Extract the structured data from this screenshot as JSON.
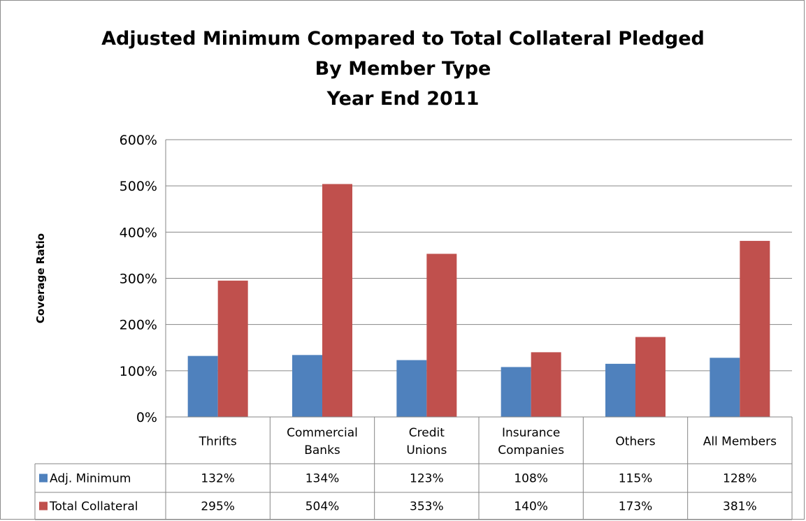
{
  "chart_data": {
    "type": "bar",
    "title_lines": [
      "Adjusted Minimum Compared to Total Collateral Pledged",
      "By Member Type",
      "Year End 2011"
    ],
    "ylabel": "Coverage Ratio",
    "xlabel": "",
    "ylim": [
      0,
      600
    ],
    "yticks": [
      0,
      100,
      200,
      300,
      400,
      500,
      600
    ],
    "ytick_labels": [
      "0%",
      "100%",
      "200%",
      "300%",
      "400%",
      "500%",
      "600%"
    ],
    "grid": true,
    "legend": "data-table",
    "categories": [
      [
        "Thrifts"
      ],
      [
        "Commercial",
        "Banks"
      ],
      [
        "Credit",
        "Unions"
      ],
      [
        "Insurance",
        "Companies"
      ],
      [
        "Others"
      ],
      [
        "All Members"
      ]
    ],
    "series": [
      {
        "name": "Adj. Minimum",
        "color": "#4f81bd",
        "values": [
          132,
          134,
          123,
          108,
          115,
          128
        ],
        "labels": [
          "132%",
          "134%",
          "123%",
          "108%",
          "115%",
          "128%"
        ]
      },
      {
        "name": "Total Collateral",
        "color": "#c0504d",
        "values": [
          295,
          504,
          353,
          140,
          173,
          381
        ],
        "labels": [
          "295%",
          "504%",
          "353%",
          "140%",
          "173%",
          "381%"
        ]
      }
    ]
  }
}
